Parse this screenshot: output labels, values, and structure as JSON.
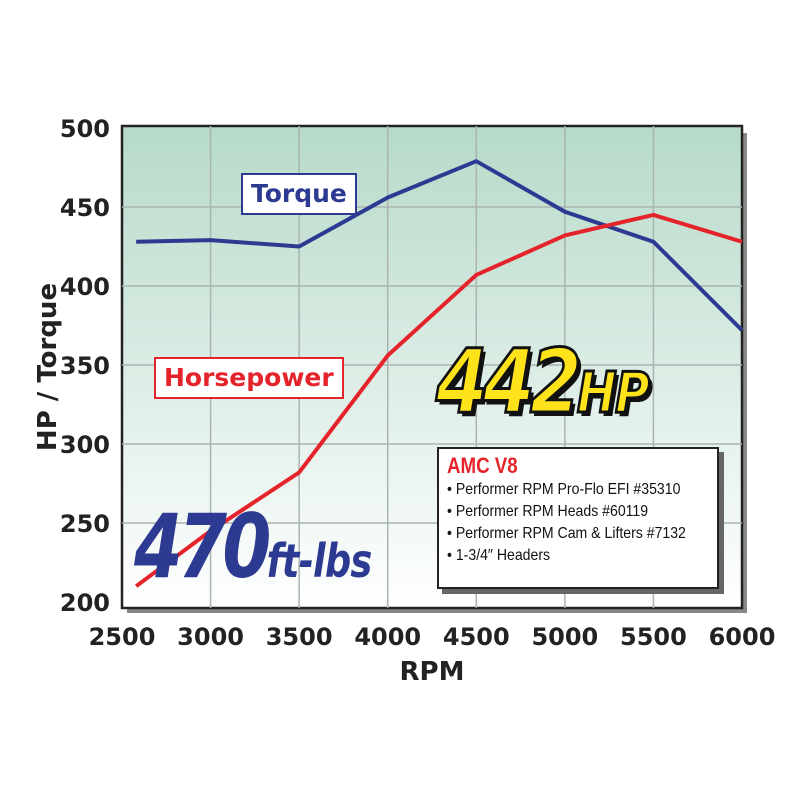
{
  "chart_data": {
    "type": "line",
    "xlabel": "RPM",
    "ylabel": "HP / Torque",
    "xlim": [
      2500,
      6000
    ],
    "ylim": [
      200,
      500
    ],
    "x_ticks": [
      "2500",
      "3000",
      "3500",
      "4000",
      "4500",
      "5000",
      "5500",
      "6000"
    ],
    "y_ticks": [
      "200",
      "250",
      "300",
      "350",
      "400",
      "450",
      "500"
    ],
    "grid": true,
    "x": [
      2580,
      3000,
      3500,
      4000,
      4500,
      5000,
      5500,
      6000
    ],
    "series": [
      {
        "name": "Torque",
        "color": "#2d3a92",
        "values": [
          428,
          429,
          425,
          456,
          479,
          447,
          428,
          372
        ]
      },
      {
        "name": "Horsepower",
        "color": "#e5232b",
        "values": [
          210,
          245,
          282,
          356,
          407,
          432,
          445,
          428
        ]
      }
    ],
    "annotations": {
      "peak_hp": "442",
      "peak_hp_unit": "HP",
      "peak_torque": "470",
      "peak_torque_unit": "ft-lbs"
    },
    "info_box": {
      "title": "AMC V8",
      "items": [
        "• Performer RPM Pro-Flo EFI #35310",
        "• Performer RPM Heads #60119",
        "• Performer RPM Cam & Lifters #7132",
        "• 1-3/4″ Headers"
      ]
    }
  }
}
